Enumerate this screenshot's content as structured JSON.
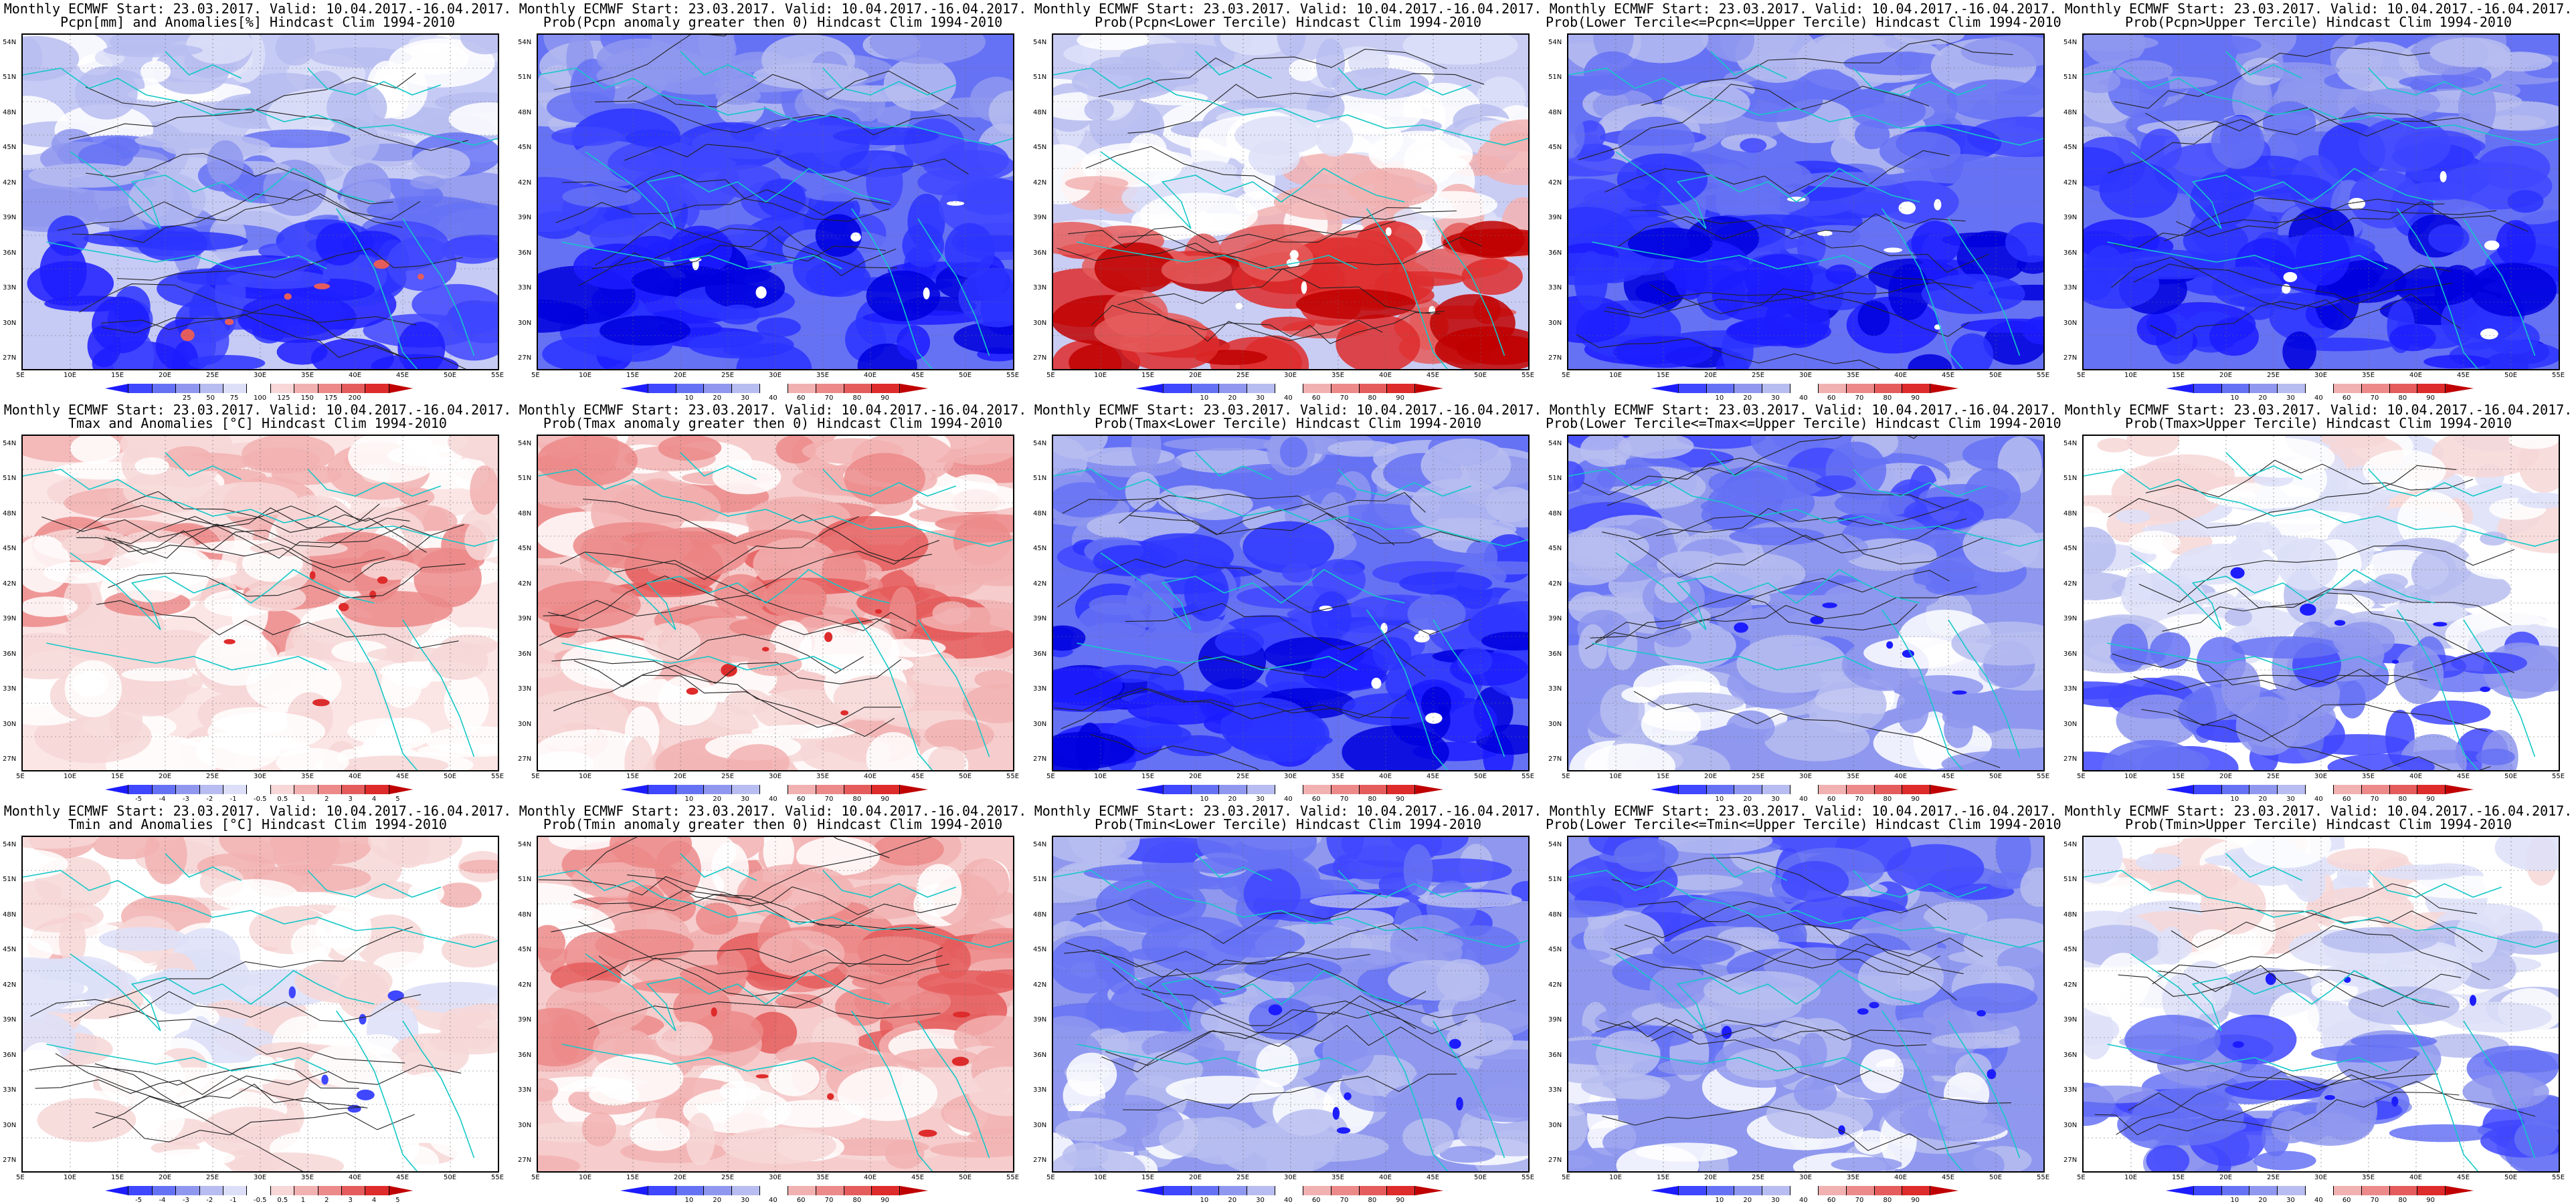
{
  "x_ticks": [
    "5E",
    "10E",
    "15E",
    "20E",
    "25E",
    "30E",
    "35E",
    "40E",
    "45E",
    "50E",
    "55E"
  ],
  "y_ticks": [
    "54N",
    "51N",
    "48N",
    "45N",
    "42N",
    "39N",
    "36N",
    "33N",
    "30N",
    "27N"
  ],
  "colorbars": {
    "precip": {
      "labels": [
        "25",
        "50",
        "75",
        "100",
        "125",
        "150",
        "175",
        "200"
      ],
      "colors": [
        "#1c1cff",
        "#3f47ff",
        "#6672f4",
        "#8f98ee",
        "#b7bdf0",
        "#dcdff7",
        "#ffffff",
        "#f7d7d7",
        "#f2b1b1",
        "#ec8a8a",
        "#e55c5c",
        "#de2b2b",
        "#c00000"
      ]
    },
    "prob": {
      "labels": [
        "10",
        "20",
        "30",
        "40",
        "60",
        "70",
        "80",
        "90"
      ],
      "colors": [
        "#1c1cff",
        "#3f47ff",
        "#6672f4",
        "#8f98ee",
        "#b7bdf0",
        "#ffffff",
        "#f2b1b1",
        "#ec8a8a",
        "#e55c5c",
        "#de2b2b",
        "#c00000"
      ]
    },
    "anom": {
      "labels": [
        "-5",
        "-4",
        "-3",
        "-2",
        "-1",
        "-0.5",
        "0.5",
        "1",
        "2",
        "3",
        "4",
        "5"
      ],
      "colors": [
        "#1c1cff",
        "#3f47ff",
        "#6672f4",
        "#8f98ee",
        "#b7bdf0",
        "#dcdff7",
        "#ffffff",
        "#f7d7d7",
        "#f2b1b1",
        "#ec8a8a",
        "#e55c5c",
        "#de2b2b",
        "#c00000"
      ]
    }
  },
  "panels": [
    {
      "id": "pcpn-anom",
      "title1": "Monthly ECMWF Start: 23.03.2017. Valid: 10.04.2017.-16.04.2017.",
      "title2": "Pcpn[mm] and Anomalies[%] Hindcast Clim 1994-2010",
      "colorbar": "precip",
      "theme": "blue_south",
      "variable": "Pcpn"
    },
    {
      "id": "pcpn-prob-pos",
      "title1": "Monthly ECMWF Start: 23.03.2017. Valid: 10.04.2017.-16.04.2017.",
      "title2": "Prob(Pcpn anomaly greater then 0) Hindcast Clim 1994-2010",
      "colorbar": "prob",
      "theme": "blue_strong",
      "variable": "Pcpn"
    },
    {
      "id": "pcpn-prob-lower",
      "title1": "Monthly ECMWF Start: 23.03.2017. Valid: 10.04.2017.-16.04.2017.",
      "title2": "Prob(Pcpn<Lower Tercile) Hindcast Clim 1994-2010",
      "colorbar": "prob",
      "theme": "red_south",
      "variable": "Pcpn"
    },
    {
      "id": "pcpn-prob-middle",
      "title1": "Monthly ECMWF Start: 23.03.2017. Valid: 10.04.2017.-16.04.2017.",
      "title2": "Prob(Lower Tercile<=Pcpn<=Upper Tercile) Hindcast Clim 1994-2010",
      "colorbar": "prob",
      "theme": "blue_strong",
      "variable": "Pcpn"
    },
    {
      "id": "pcpn-prob-upper",
      "title1": "Monthly ECMWF Start: 23.03.2017. Valid: 10.04.2017.-16.04.2017.",
      "title2": "Prob(Pcpn>Upper Tercile) Hindcast Clim 1994-2010",
      "colorbar": "prob",
      "theme": "blue_strong",
      "variable": "Pcpn"
    },
    {
      "id": "tmax-anom",
      "title1": "Monthly ECMWF Start: 23.03.2017. Valid: 10.04.2017.-16.04.2017.",
      "title2": "Tmax and Anomalies [°C] Hindcast Clim 1994-2010",
      "colorbar": "anom",
      "theme": "light_red",
      "variable": "Tmax"
    },
    {
      "id": "tmax-prob-pos",
      "title1": "Monthly ECMWF Start: 23.03.2017. Valid: 10.04.2017.-16.04.2017.",
      "title2": "Prob(Tmax anomaly greater then 0) Hindcast Clim 1994-2010",
      "colorbar": "prob",
      "theme": "red",
      "variable": "Tmax"
    },
    {
      "id": "tmax-prob-lower",
      "title1": "Monthly ECMWF Start: 23.03.2017. Valid: 10.04.2017.-16.04.2017.",
      "title2": "Prob(Tmax<Lower Tercile) Hindcast Clim 1994-2010",
      "colorbar": "prob",
      "theme": "blue_strong",
      "variable": "Tmax"
    },
    {
      "id": "tmax-prob-middle",
      "title1": "Monthly ECMWF Start: 23.03.2017. Valid: 10.04.2017.-16.04.2017.",
      "title2": "Prob(Lower Tercile<=Tmax<=Upper Tercile) Hindcast Clim 1994-2010",
      "colorbar": "prob",
      "theme": "blue_mid",
      "variable": "Tmax"
    },
    {
      "id": "tmax-prob-upper",
      "title1": "Monthly ECMWF Start: 23.03.2017. Valid: 10.04.2017.-16.04.2017.",
      "title2": "Prob(Tmax>Upper Tercile) Hindcast Clim 1994-2010",
      "colorbar": "prob",
      "theme": "light_blue",
      "variable": "Tmax"
    },
    {
      "id": "tmin-anom",
      "title1": "Monthly ECMWF Start: 23.03.2017. Valid: 10.04.2017.-16.04.2017.",
      "title2": "Tmin and Anomalies [°C] Hindcast Clim 1994-2010",
      "colorbar": "anom",
      "theme": "very_light_red",
      "variable": "Tmin"
    },
    {
      "id": "tmin-prob-pos",
      "title1": "Monthly ECMWF Start: 23.03.2017. Valid: 10.04.2017.-16.04.2017.",
      "title2": "Prob(Tmin anomaly greater then 0) Hindcast Clim 1994-2010",
      "colorbar": "prob",
      "theme": "red",
      "variable": "Tmin"
    },
    {
      "id": "tmin-prob-lower",
      "title1": "Monthly ECMWF Start: 23.03.2017. Valid: 10.04.2017.-16.04.2017.",
      "title2": "Prob(Tmin<Lower Tercile) Hindcast Clim 1994-2010",
      "colorbar": "prob",
      "theme": "blue_mid",
      "variable": "Tmin"
    },
    {
      "id": "tmin-prob-middle",
      "title1": "Monthly ECMWF Start: 23.03.2017. Valid: 10.04.2017.-16.04.2017.",
      "title2": "Prob(Lower Tercile<=Tmin<=Upper Tercile) Hindcast Clim 1994-2010",
      "colorbar": "prob",
      "theme": "blue_mid",
      "variable": "Tmin"
    },
    {
      "id": "tmin-prob-upper",
      "title1": "Monthly ECMWF Start: 23.03.2017. Valid: 10.04.2017.-16.04.2017.",
      "title2": "Prob(Tmin>Upper Tercile) Hindcast Clim 1994-2010",
      "colorbar": "prob",
      "theme": "light_blue",
      "variable": "Tmin"
    }
  ]
}
